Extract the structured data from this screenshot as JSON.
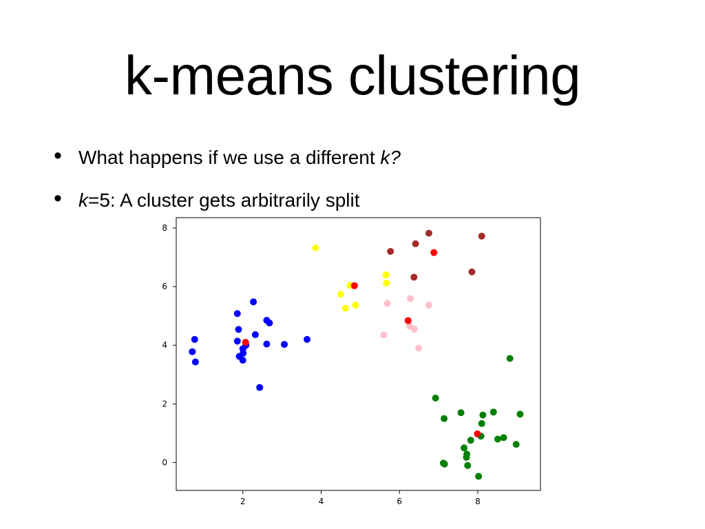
{
  "slide": {
    "title": "k-means clustering",
    "bullets": [
      {
        "pre": "What happens if we use a different ",
        "em": "k?",
        "post": ""
      },
      {
        "pre": "",
        "em": "k",
        "post": "=5:  A cluster gets arbitrarily split"
      }
    ]
  },
  "chart_data": {
    "type": "scatter",
    "title": "",
    "xlabel": "",
    "ylabel": "",
    "xlim": [
      0.3,
      9.6
    ],
    "ylim": [
      -0.95,
      8.35
    ],
    "xticks": [
      2,
      4,
      6,
      8
    ],
    "yticks": [
      0,
      2,
      4,
      6,
      8
    ],
    "grid": false,
    "series": [
      {
        "color": "#0000ff",
        "points": [
          [
            0.77,
            4.2
          ],
          [
            0.71,
            3.78
          ],
          [
            0.79,
            3.43
          ],
          [
            1.86,
            5.08
          ],
          [
            1.89,
            4.54
          ],
          [
            1.86,
            4.14
          ],
          [
            2.27,
            5.48
          ],
          [
            2.32,
            4.36
          ],
          [
            1.91,
            3.62
          ],
          [
            2.0,
            3.88
          ],
          [
            2.01,
            3.73
          ],
          [
            2.0,
            3.49
          ],
          [
            2.08,
            4.0
          ],
          [
            2.61,
            4.85
          ],
          [
            2.68,
            4.76
          ],
          [
            2.61,
            4.04
          ],
          [
            3.06,
            4.03
          ],
          [
            3.64,
            4.2
          ],
          [
            2.43,
            2.56
          ]
        ]
      },
      {
        "color": "#ffff00",
        "points": [
          [
            3.86,
            7.32
          ],
          [
            4.5,
            5.74
          ],
          [
            4.62,
            5.26
          ],
          [
            4.74,
            6.04
          ],
          [
            4.88,
            5.37
          ],
          [
            5.66,
            6.4
          ],
          [
            5.67,
            6.12
          ]
        ]
      },
      {
        "color": "#ffc0cb",
        "points": [
          [
            5.69,
            5.43
          ],
          [
            5.6,
            4.35
          ],
          [
            6.28,
            5.59
          ],
          [
            6.26,
            4.65
          ],
          [
            6.38,
            4.55
          ],
          [
            6.49,
            3.9
          ],
          [
            6.75,
            5.37
          ]
        ]
      },
      {
        "color": "#a52a2a",
        "points": [
          [
            5.77,
            7.2
          ],
          [
            6.41,
            7.46
          ],
          [
            6.37,
            6.32
          ],
          [
            6.75,
            7.82
          ],
          [
            7.85,
            6.5
          ],
          [
            8.1,
            7.72
          ]
        ]
      },
      {
        "color": "#008000",
        "points": [
          [
            6.92,
            2.2
          ],
          [
            7.14,
            1.5
          ],
          [
            7.57,
            1.7
          ],
          [
            8.13,
            1.62
          ],
          [
            8.4,
            1.72
          ],
          [
            9.08,
            1.65
          ],
          [
            8.82,
            3.55
          ],
          [
            7.65,
            0.5
          ],
          [
            7.82,
            0.76
          ],
          [
            8.08,
            0.9
          ],
          [
            8.1,
            1.33
          ],
          [
            8.51,
            0.8
          ],
          [
            8.66,
            0.85
          ],
          [
            8.98,
            0.62
          ],
          [
            7.12,
            -0.02
          ],
          [
            7.15,
            -0.05
          ],
          [
            7.71,
            0.18
          ],
          [
            7.72,
            0.29
          ],
          [
            7.74,
            -0.1
          ],
          [
            8.02,
            -0.47
          ]
        ]
      },
      {
        "color": "#ff0000",
        "points": [
          [
            2.07,
            4.1
          ],
          [
            4.85,
            6.03
          ],
          [
            6.22,
            4.84
          ],
          [
            6.88,
            7.16
          ],
          [
            7.99,
            0.98
          ]
        ]
      }
    ]
  }
}
